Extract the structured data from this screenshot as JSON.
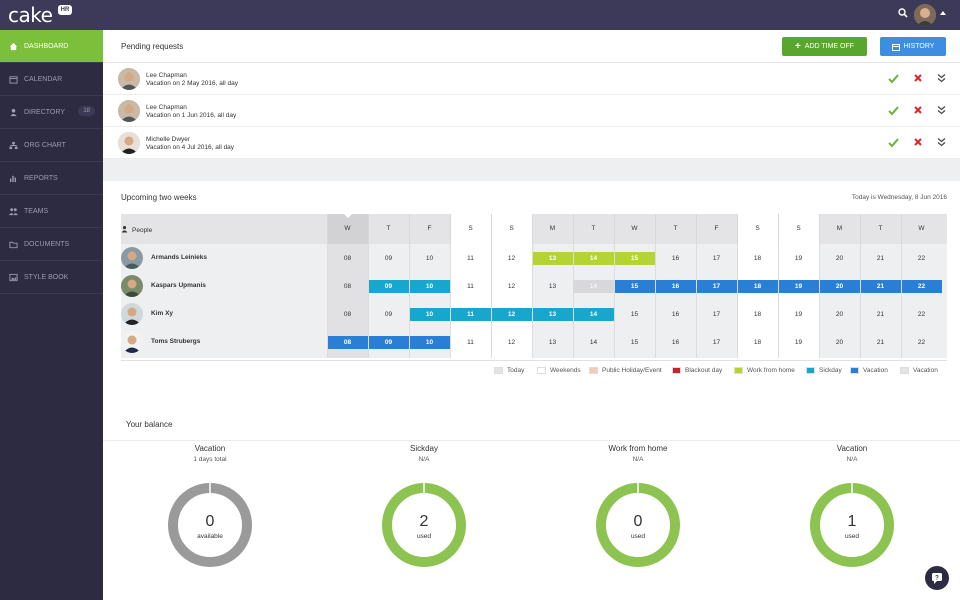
{
  "app": {
    "logo": "cake",
    "logo_badge": "HR"
  },
  "sidebar": {
    "items": [
      {
        "label": "DASHBOARD",
        "icon": "home-icon",
        "active": true
      },
      {
        "label": "CALENDAR",
        "icon": "calendar-icon"
      },
      {
        "label": "DIRECTORY",
        "icon": "person-icon",
        "count": "18"
      },
      {
        "label": "ORG CHART",
        "icon": "org-chart-icon"
      },
      {
        "label": "REPORTS",
        "icon": "bar-chart-icon"
      },
      {
        "label": "TEAMS",
        "icon": "team-icon"
      },
      {
        "label": "DOCUMENTS",
        "icon": "folder-icon"
      },
      {
        "label": "STYLE BOOK",
        "icon": "image-icon"
      }
    ]
  },
  "pending": {
    "title": "Pending requests",
    "add_label": "ADD TIME OFF",
    "history_label": "HISTORY",
    "requests": [
      {
        "name": "Lee Chapman",
        "desc": "Vacation on 2 May 2016, all day"
      },
      {
        "name": "Lee Chapman",
        "desc": "Vacation on 1 Jun 2016, all day"
      },
      {
        "name": "Michelle Dwyer",
        "desc": "Vacation on 4 Jul 2016, all day"
      }
    ]
  },
  "upcoming": {
    "title": "Upcoming two weeks",
    "today_text": "Today is Wednesday, 8 Jun 2016",
    "people_label": "People",
    "days": [
      "W",
      "T",
      "F",
      "S",
      "S",
      "M",
      "T",
      "W",
      "T",
      "F",
      "S",
      "S",
      "M",
      "T",
      "W"
    ],
    "dates": [
      "08",
      "09",
      "10",
      "11",
      "12",
      "13",
      "14",
      "15",
      "16",
      "17",
      "18",
      "19",
      "20",
      "21",
      "22"
    ],
    "people": [
      {
        "name": "Armands Leinieks",
        "marks": [
          "today",
          "",
          "",
          "wk",
          "wk",
          "wfh",
          "wfh",
          "wfh",
          "",
          "",
          "wk",
          "wk",
          "",
          "",
          ""
        ]
      },
      {
        "name": "Kaspars Upmanis",
        "marks": [
          "today",
          "sick",
          "sick",
          "wk",
          "wk",
          "",
          "vacp",
          "vac",
          "vac",
          "vac",
          "vac",
          "vac",
          "vac",
          "vac",
          "vac"
        ]
      },
      {
        "name": "Kim Xy",
        "marks": [
          "today",
          "",
          "sick",
          "sick",
          "sick",
          "sick",
          "sick",
          "",
          "",
          "",
          "wk",
          "wk",
          "",
          "",
          ""
        ]
      },
      {
        "name": "Toms Strubergs",
        "marks": [
          "vac",
          "vac",
          "vac",
          "wk",
          "wk",
          "",
          "",
          "",
          "",
          "",
          "wk",
          "wk",
          "",
          "",
          ""
        ]
      }
    ],
    "legend": [
      {
        "label": "Today",
        "color": "#e4e4e6"
      },
      {
        "label": "Weekends",
        "color": "#ffffff"
      },
      {
        "label": "Public Holiday/Event",
        "color": "#f8c9b8"
      },
      {
        "label": "Blackout day",
        "color": "#c0272d"
      },
      {
        "label": "Work from home",
        "color": "#b5d334"
      },
      {
        "label": "Sickday",
        "color": "#17a6cc"
      },
      {
        "label": "Vacation",
        "color": "#2a7ed4"
      },
      {
        "label": "Vacation",
        "color": "#e4e4e6"
      }
    ]
  },
  "balance": {
    "title": "Your balance",
    "items": [
      {
        "title": "Vacation",
        "sub": "1 days total",
        "value": "0",
        "unit": "available",
        "color": "#9a9a9a"
      },
      {
        "title": "Sickday",
        "sub": "N/A",
        "value": "2",
        "unit": "used",
        "color": "#8dc350"
      },
      {
        "title": "Work from home",
        "sub": "N/A",
        "value": "0",
        "unit": "used",
        "color": "#8dc350"
      },
      {
        "title": "Vacation",
        "sub": "N/A",
        "value": "1",
        "unit": "used",
        "color": "#8dc350"
      }
    ]
  }
}
